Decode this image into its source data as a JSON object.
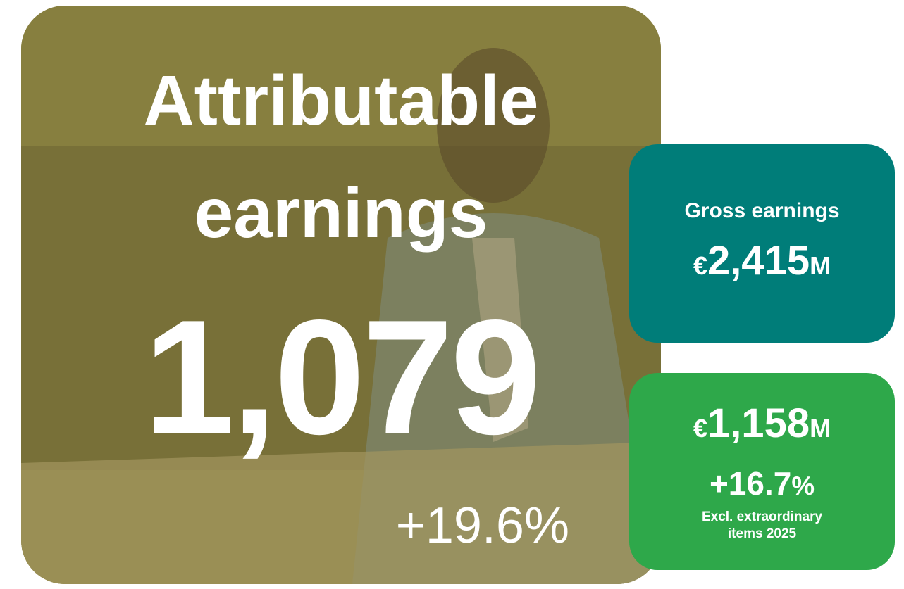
{
  "main": {
    "title_line1": "Attributable",
    "title_line2": "earnings",
    "value": "1,079",
    "change": "+19.6%"
  },
  "gross": {
    "label": "Gross earnings",
    "currency": "€",
    "amount": "2,415",
    "unit": "M"
  },
  "excl": {
    "currency": "€",
    "amount": "1,158",
    "unit": "M",
    "change_number": "+16.7",
    "change_unit": "%",
    "note_line1": "Excl. extraordinary",
    "note_line2": "items 2025"
  }
}
